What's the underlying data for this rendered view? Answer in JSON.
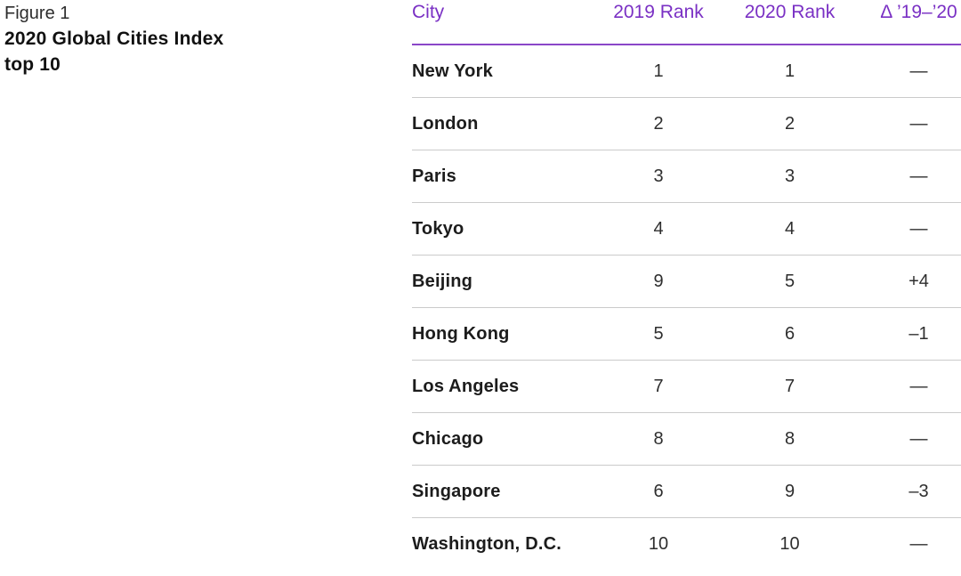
{
  "figure": {
    "label": "Figure 1",
    "title_line1": "2020 Global Cities Index",
    "title_line2": "top 10"
  },
  "chart_data": {
    "type": "table",
    "title": "Figure 1: 2020 Global Cities Index top 10",
    "columns": [
      "City",
      "2019 Rank",
      "2020 Rank",
      "Δ ’19–’20"
    ],
    "rows": [
      {
        "city": "New York",
        "rank2019": "1",
        "rank2020": "1",
        "delta": "—"
      },
      {
        "city": "London",
        "rank2019": "2",
        "rank2020": "2",
        "delta": "—"
      },
      {
        "city": "Paris",
        "rank2019": "3",
        "rank2020": "3",
        "delta": "—"
      },
      {
        "city": "Tokyo",
        "rank2019": "4",
        "rank2020": "4",
        "delta": "—"
      },
      {
        "city": "Beijing",
        "rank2019": "9",
        "rank2020": "5",
        "delta": "+4"
      },
      {
        "city": "Hong Kong",
        "rank2019": "5",
        "rank2020": "6",
        "delta": "–1"
      },
      {
        "city": "Los Angeles",
        "rank2019": "7",
        "rank2020": "7",
        "delta": "—"
      },
      {
        "city": "Chicago",
        "rank2019": "8",
        "rank2020": "8",
        "delta": "—"
      },
      {
        "city": "Singapore",
        "rank2019": "6",
        "rank2020": "9",
        "delta": "–3"
      },
      {
        "city": "Washington, D.C.",
        "rank2019": "10",
        "rank2020": "10",
        "delta": "—"
      }
    ]
  },
  "colors": {
    "accent_purple": "#7a30c4",
    "header_rule": "#8a46c8",
    "row_divider": "#cbcbcb",
    "city_text": "#1c1c1c",
    "number_text": "#2e2e2e"
  }
}
